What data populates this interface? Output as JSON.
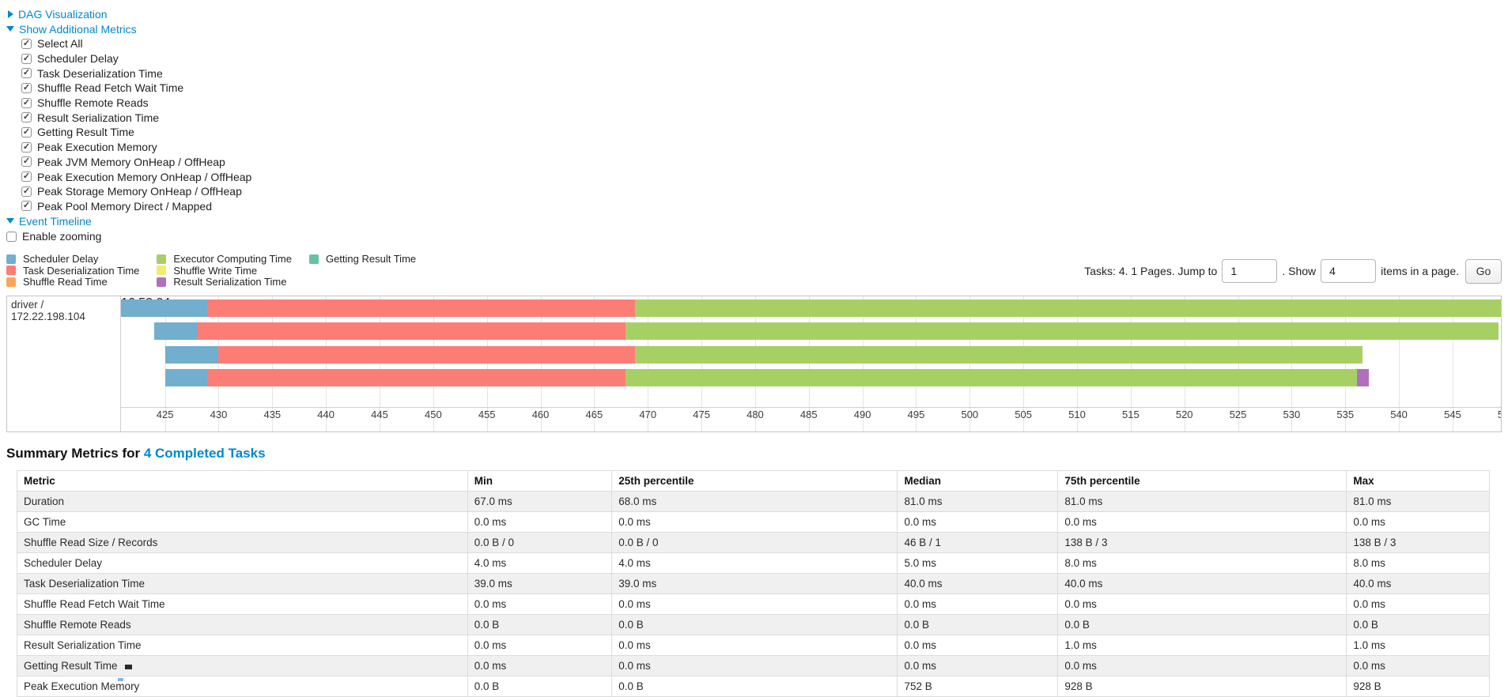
{
  "accent_color": "#0088cc",
  "controls": {
    "dag_link": "DAG Visualization",
    "metrics_link": "Show Additional Metrics",
    "event_timeline_link": "Event Timeline",
    "enable_zooming": {
      "label": "Enable zooming",
      "checked": false
    },
    "metric_items": [
      {
        "label": "Select All",
        "checked": true
      },
      {
        "label": "Scheduler Delay",
        "checked": true
      },
      {
        "label": "Task Deserialization Time",
        "checked": true
      },
      {
        "label": "Shuffle Read Fetch Wait Time",
        "checked": true
      },
      {
        "label": "Shuffle Remote Reads",
        "checked": true
      },
      {
        "label": "Result Serialization Time",
        "checked": true
      },
      {
        "label": "Getting Result Time",
        "checked": true
      },
      {
        "label": "Peak Execution Memory",
        "checked": true
      },
      {
        "label": "Peak JVM Memory OnHeap / OffHeap",
        "checked": true
      },
      {
        "label": "Peak Execution Memory OnHeap / OffHeap",
        "checked": true
      },
      {
        "label": "Peak Storage Memory OnHeap / OffHeap",
        "checked": true
      },
      {
        "label": "Peak Pool Memory Direct / Mapped",
        "checked": true
      }
    ]
  },
  "legend": {
    "columns": [
      [
        {
          "label": "Scheduler Delay",
          "color": "#72AECE"
        },
        {
          "label": "Task Deserialization Time",
          "color": "#FC7D76"
        },
        {
          "label": "Shuffle Read Time",
          "color": "#FAA65A"
        }
      ],
      [
        {
          "label": "Executor Computing Time",
          "color": "#A7D064"
        },
        {
          "label": "Shuffle Write Time",
          "color": "#F4EB75"
        },
        {
          "label": "Result Serialization Time",
          "color": "#B26FBE"
        }
      ],
      [
        {
          "label": "Getting Result Time",
          "color": "#66C2A4"
        }
      ]
    ]
  },
  "pagination": {
    "prefix": "Tasks: 4. 1 Pages. Jump to",
    "jump_value": "1",
    "mid": ". Show",
    "show_value": "4",
    "suffix": "items in a page.",
    "go_label": "Go"
  },
  "timeline": {
    "group_label": "driver / 172.22.198.104",
    "axis": {
      "t0": 420.9,
      "t1": 549.5,
      "tick_start": 425,
      "tick_end": 550,
      "tick_step": 5,
      "major_label": "16:52:04"
    },
    "colors": {
      "scheduler_delay": "#72AECE",
      "task_deserialization": "#FC7D76",
      "shuffle_read": "#FAA65A",
      "executor_computing": "#A7D064",
      "shuffle_write": "#F4EB75",
      "result_serialization": "#B26FBE",
      "getting_result": "#66C2A4"
    },
    "tasks": [
      {
        "segments": [
          {
            "type": "scheduler_delay",
            "start": 420.9,
            "end": 428.9
          },
          {
            "type": "task_deserialization",
            "start": 428.9,
            "end": 468.8
          },
          {
            "type": "executor_computing",
            "start": 468.8,
            "end": 550.5
          }
        ]
      },
      {
        "segments": [
          {
            "type": "scheduler_delay",
            "start": 424.0,
            "end": 428.0
          },
          {
            "type": "task_deserialization",
            "start": 428.0,
            "end": 467.9
          },
          {
            "type": "executor_computing",
            "start": 467.9,
            "end": 549.3
          }
        ]
      },
      {
        "segments": [
          {
            "type": "scheduler_delay",
            "start": 425.0,
            "end": 430.0
          },
          {
            "type": "task_deserialization",
            "start": 430.0,
            "end": 468.8
          },
          {
            "type": "executor_computing",
            "start": 468.8,
            "end": 536.6
          }
        ]
      },
      {
        "segments": [
          {
            "type": "scheduler_delay",
            "start": 425.0,
            "end": 428.9
          },
          {
            "type": "task_deserialization",
            "start": 428.9,
            "end": 467.9
          },
          {
            "type": "executor_computing",
            "start": 467.9,
            "end": 536.1
          },
          {
            "type": "result_serialization",
            "start": 536.1,
            "end": 537.2
          }
        ]
      }
    ]
  },
  "summary": {
    "title_prefix": "Summary Metrics for ",
    "title_link": "4 Completed Tasks",
    "table": {
      "headers": [
        "Metric",
        "Min",
        "25th percentile",
        "Median",
        "75th percentile",
        "Max"
      ],
      "rows": [
        [
          "Duration",
          "67.0 ms",
          "68.0 ms",
          "81.0 ms",
          "81.0 ms",
          "81.0 ms"
        ],
        [
          "GC Time",
          "0.0 ms",
          "0.0 ms",
          "0.0 ms",
          "0.0 ms",
          "0.0 ms"
        ],
        [
          "Shuffle Read Size / Records",
          "0.0 B / 0",
          "0.0 B / 0",
          "46 B / 1",
          "138 B / 3",
          "138 B / 3"
        ],
        [
          "Scheduler Delay",
          "4.0 ms",
          "4.0 ms",
          "5.0 ms",
          "8.0 ms",
          "8.0 ms"
        ],
        [
          "Task Deserialization Time",
          "39.0 ms",
          "39.0 ms",
          "40.0 ms",
          "40.0 ms",
          "40.0 ms"
        ],
        [
          "Shuffle Read Fetch Wait Time",
          "0.0 ms",
          "0.0 ms",
          "0.0 ms",
          "0.0 ms",
          "0.0 ms"
        ],
        [
          "Shuffle Remote Reads",
          "0.0 B",
          "0.0 B",
          "0.0 B",
          "0.0 B",
          "0.0 B"
        ],
        [
          "Result Serialization Time",
          "0.0 ms",
          "0.0 ms",
          "0.0 ms",
          "1.0 ms",
          "1.0 ms"
        ],
        [
          "Getting Result Time",
          "0.0 ms",
          "0.0 ms",
          "0.0 ms",
          "0.0 ms",
          "0.0 ms"
        ],
        [
          "Peak Execution Memory",
          "0.0 B",
          "0.0 B",
          "752 B",
          "928 B",
          "928 B"
        ]
      ]
    }
  }
}
